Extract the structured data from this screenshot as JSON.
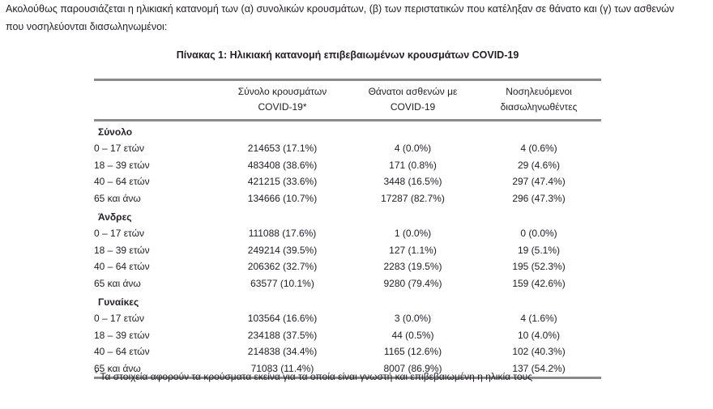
{
  "intro": {
    "text": "Ακολούθως παρουσιάζεται η ηλικιακή κατανομή των (α) συνολικών κρουσμάτων, (β) των περιστατικών που κατέληξαν σε θάνατο και (γ) των ασθενών που νοσηλεύονται διασωληνωμένοι:"
  },
  "table": {
    "title": "Πίνακας 1: Ηλικιακή κατανομή επιβεβαιωμένων κρουσμάτων COVID-19",
    "columns": {
      "cases": {
        "line1": "Σύνολο κρουσμάτων",
        "line2": "COVID-19*"
      },
      "deaths": {
        "line1": "Θάνατοι ασθενών με",
        "line2": "COVID-19"
      },
      "intubated": {
        "line1": "Νοσηλευόμενοι",
        "line2": "διασωληνωθέντες"
      }
    },
    "groups": [
      {
        "label": "Σύνολο",
        "rows": [
          {
            "age": "0 – 17 ετών",
            "cases": "214653 (17.1%)",
            "deaths": "4 (0.0%)",
            "intubated": "4 (0.6%)"
          },
          {
            "age": "18 – 39 ετών",
            "cases": "483408 (38.6%)",
            "deaths": "171 (0.8%)",
            "intubated": "29 (4.6%)"
          },
          {
            "age": "40 – 64 ετών",
            "cases": "421215 (33.6%)",
            "deaths": "3448 (16.5%)",
            "intubated": "297 (47.4%)"
          },
          {
            "age": "65 και άνω",
            "cases": "134666 (10.7%)",
            "deaths": "17287 (82.7%)",
            "intubated": "296 (47.3%)"
          }
        ]
      },
      {
        "label": "Άνδρες",
        "rows": [
          {
            "age": "0 – 17 ετών",
            "cases": "111088 (17.6%)",
            "deaths": "1 (0.0%)",
            "intubated": "0 (0.0%)"
          },
          {
            "age": "18 – 39 ετών",
            "cases": "249214 (39.5%)",
            "deaths": "127 (1.1%)",
            "intubated": "19 (5.1%)"
          },
          {
            "age": "40 – 64 ετών",
            "cases": "206362 (32.7%)",
            "deaths": "2283 (19.5%)",
            "intubated": "195 (52.3%)"
          },
          {
            "age": "65 και άνω",
            "cases": "63577 (10.1%)",
            "deaths": "9280 (79.4%)",
            "intubated": "159 (42.6%)"
          }
        ]
      },
      {
        "label": "Γυναίκες",
        "rows": [
          {
            "age": "0 – 17 ετών",
            "cases": "103564 (16.6%)",
            "deaths": "3 (0.0%)",
            "intubated": "4 (1.6%)"
          },
          {
            "age": "18 – 39 ετών",
            "cases": "234188 (37.5%)",
            "deaths": "44 (0.5%)",
            "intubated": "10 (4.0%)"
          },
          {
            "age": "40 – 64 ετών",
            "cases": "214838 (34.4%)",
            "deaths": "1165 (12.6%)",
            "intubated": "102 (40.3%)"
          },
          {
            "age": "65 και άνω",
            "cases": "71083 (11.4%)",
            "deaths": "8007 (86.9%)",
            "intubated": "137 (54.2%)"
          }
        ]
      }
    ],
    "footnote_marker": "*",
    "footnote": "Τα στοιχεία αφορούν τα κρούσματα εκείνα για τα οποία είναι γνωστή και επιβεβαιωμένη η ηλικία τους"
  }
}
